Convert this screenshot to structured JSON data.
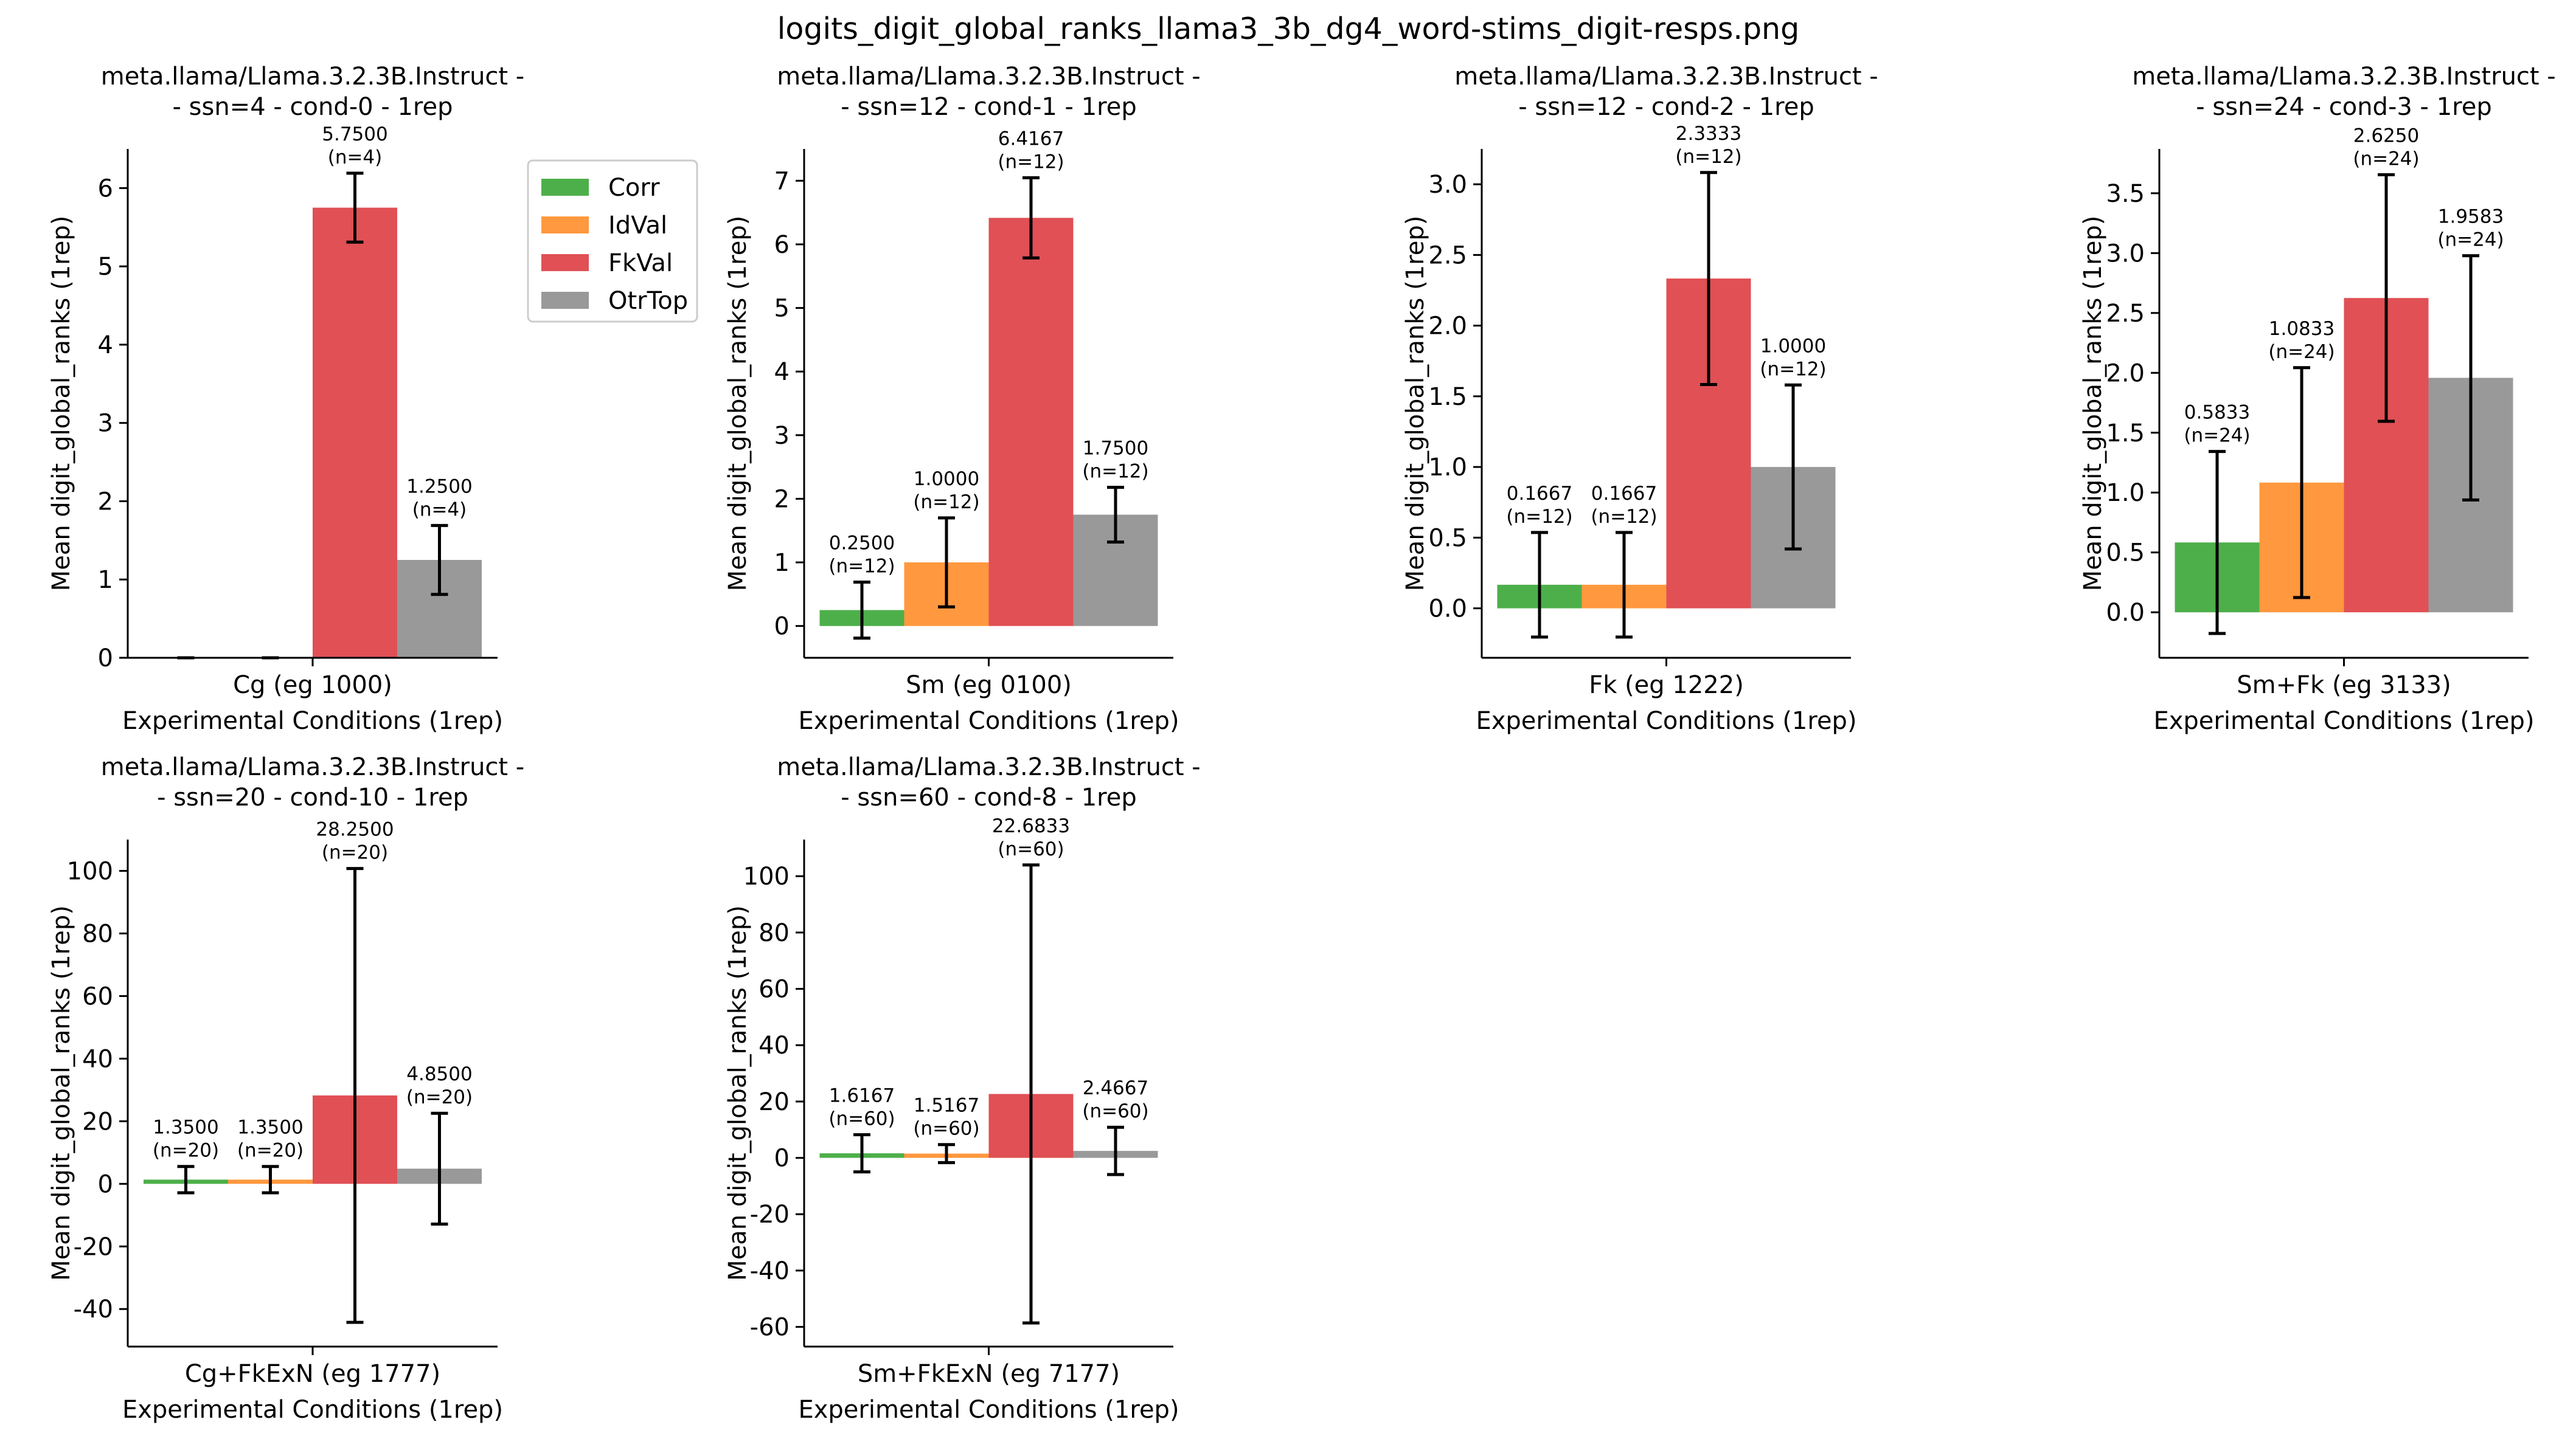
{
  "figure_title": "logits_digit_global_ranks_llama3_3b_dg4_word-stims_digit-resps.png",
  "colors": {
    "Corr": "#4daf4a",
    "IdVal": "#ff983e",
    "FkVal": "#e05055",
    "OtrTop": "#999999",
    "axis": "#000000"
  },
  "legend": [
    "Corr",
    "IdVal",
    "FkVal",
    "OtrTop"
  ],
  "chart_data": [
    {
      "type": "bar",
      "title_lines": [
        "meta.llama/Llama.3.2.3B.Instruct -",
        "- ssn=4 - cond-0 - 1rep"
      ],
      "xlabel": "Experimental Conditions (1rep)",
      "ylabel": "Mean digit_global_ranks (1rep)",
      "categories": [
        "Cg (eg 1000)"
      ],
      "ylim": [
        0,
        6.5
      ],
      "yticks": [
        0,
        1,
        2,
        3,
        4,
        5,
        6
      ],
      "series": [
        {
          "name": "Corr",
          "value": 0,
          "err": 0,
          "labels": []
        },
        {
          "name": "IdVal",
          "value": 0,
          "err": 0,
          "labels": []
        },
        {
          "name": "FkVal",
          "value": 5.75,
          "err": 0.44,
          "labels": [
            "5.7500",
            "(n=4)"
          ]
        },
        {
          "name": "OtrTop",
          "value": 1.25,
          "err": 0.44,
          "labels": [
            "1.2500",
            "(n=4)"
          ]
        }
      ]
    },
    {
      "type": "bar",
      "title_lines": [
        "meta.llama/Llama.3.2.3B.Instruct -",
        "- ssn=12 - cond-1 - 1rep"
      ],
      "xlabel": "Experimental Conditions (1rep)",
      "ylabel": "Mean digit_global_ranks (1rep)",
      "categories": [
        "Sm (eg 0100)"
      ],
      "ylim": [
        -0.5,
        7.5
      ],
      "yticks": [
        0,
        1,
        2,
        3,
        4,
        5,
        6,
        7
      ],
      "series": [
        {
          "name": "Corr",
          "value": 0.25,
          "err": 0.44,
          "labels": [
            "0.2500",
            "(n=12)"
          ]
        },
        {
          "name": "IdVal",
          "value": 1.0,
          "err": 0.7,
          "labels": [
            "1.0000",
            "(n=12)"
          ]
        },
        {
          "name": "FkVal",
          "value": 6.4167,
          "err": 0.63,
          "labels": [
            "6.4167",
            "(n=12)"
          ]
        },
        {
          "name": "OtrTop",
          "value": 1.75,
          "err": 0.43,
          "labels": [
            "1.7500",
            "(n=12)"
          ]
        }
      ]
    },
    {
      "type": "bar",
      "title_lines": [
        "meta.llama/Llama.3.2.3B.Instruct -",
        "- ssn=12 - cond-2 - 1rep"
      ],
      "xlabel": "Experimental Conditions (1rep)",
      "ylabel": "Mean digit_global_ranks (1rep)",
      "categories": [
        "Fk (eg 1222)"
      ],
      "ylim": [
        -0.35,
        3.25
      ],
      "yticks": [
        0.0,
        0.5,
        1.0,
        1.5,
        2.0,
        2.5,
        3.0
      ],
      "series": [
        {
          "name": "Corr",
          "value": 0.1667,
          "err": 0.37,
          "labels": [
            "0.1667",
            "(n=12)"
          ]
        },
        {
          "name": "IdVal",
          "value": 0.1667,
          "err": 0.37,
          "labels": [
            "0.1667",
            "(n=12)"
          ]
        },
        {
          "name": "FkVal",
          "value": 2.3333,
          "err": 0.75,
          "labels": [
            "2.3333",
            "(n=12)"
          ]
        },
        {
          "name": "OtrTop",
          "value": 1.0,
          "err": 0.58,
          "labels": [
            "1.0000",
            "(n=12)"
          ]
        }
      ]
    },
    {
      "type": "bar",
      "title_lines": [
        "meta.llama/Llama.3.2.3B.Instruct -",
        "- ssn=24 - cond-3 - 1rep"
      ],
      "xlabel": "Experimental Conditions (1rep)",
      "ylabel": "Mean digit_global_ranks (1rep)",
      "categories": [
        "Sm+Fk (eg 3133)"
      ],
      "ylim": [
        -0.38,
        3.87
      ],
      "yticks": [
        0.0,
        0.5,
        1.0,
        1.5,
        2.0,
        2.5,
        3.0,
        3.5
      ],
      "series": [
        {
          "name": "Corr",
          "value": 0.5833,
          "err": 0.76,
          "labels": [
            "0.5833",
            "(n=24)"
          ]
        },
        {
          "name": "IdVal",
          "value": 1.0833,
          "err": 0.96,
          "labels": [
            "1.0833",
            "(n=24)"
          ]
        },
        {
          "name": "FkVal",
          "value": 2.625,
          "err": 1.03,
          "labels": [
            "2.6250",
            "(n=24)"
          ]
        },
        {
          "name": "OtrTop",
          "value": 1.9583,
          "err": 1.02,
          "labels": [
            "1.9583",
            "(n=24)"
          ]
        }
      ]
    },
    {
      "type": "bar",
      "title_lines": [
        "meta.llama/Llama.3.2.3B.Instruct -",
        "- ssn=20 - cond-10 - 1rep"
      ],
      "xlabel": "Experimental Conditions (1rep)",
      "ylabel": "Mean digit_global_ranks (1rep)",
      "categories": [
        "Cg+FkExN (eg 1777)"
      ],
      "ylim": [
        -52,
        110
      ],
      "yticks": [
        -40,
        -20,
        0,
        20,
        40,
        60,
        80,
        100
      ],
      "series": [
        {
          "name": "Corr",
          "value": 1.35,
          "err": 4.2,
          "labels": [
            "1.3500",
            "(n=20)"
          ]
        },
        {
          "name": "IdVal",
          "value": 1.35,
          "err": 4.2,
          "labels": [
            "1.3500",
            "(n=20)"
          ]
        },
        {
          "name": "FkVal",
          "value": 28.25,
          "err": 72.5,
          "labels": [
            "28.2500",
            "(n=20)"
          ]
        },
        {
          "name": "OtrTop",
          "value": 4.85,
          "err": 17.7,
          "labels": [
            "4.8500",
            "(n=20)"
          ]
        }
      ]
    },
    {
      "type": "bar",
      "title_lines": [
        "meta.llama/Llama.3.2.3B.Instruct -",
        "- ssn=60 - cond-8 - 1rep"
      ],
      "xlabel": "Experimental Conditions (1rep)",
      "ylabel": "Mean digit_global_ranks (1rep)",
      "categories": [
        "Sm+FkExN (eg 7177)"
      ],
      "ylim": [
        -67,
        113
      ],
      "yticks": [
        -60,
        -40,
        -20,
        0,
        20,
        40,
        60,
        80,
        100
      ],
      "series": [
        {
          "name": "Corr",
          "value": 1.6167,
          "err": 6.6,
          "labels": [
            "1.6167",
            "(n=60)"
          ]
        },
        {
          "name": "IdVal",
          "value": 1.5167,
          "err": 3.2,
          "labels": [
            "1.5167",
            "(n=60)"
          ]
        },
        {
          "name": "FkVal",
          "value": 22.6833,
          "err": 81.3,
          "labels": [
            "22.6833",
            "(n=60)"
          ]
        },
        {
          "name": "OtrTop",
          "value": 2.4667,
          "err": 8.4,
          "labels": [
            "2.4667",
            "(n=60)"
          ]
        }
      ]
    }
  ]
}
